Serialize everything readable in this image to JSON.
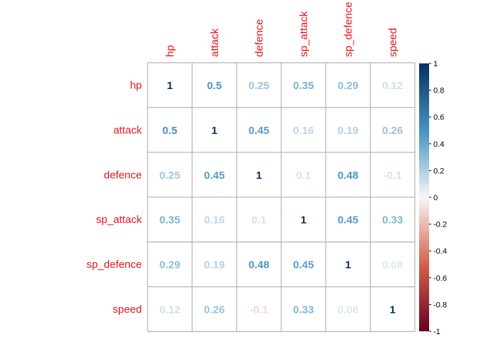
{
  "chart_data": {
    "type": "heatmap",
    "title": "",
    "variables": [
      "hp",
      "attack",
      "defence",
      "sp_attack",
      "sp_defence",
      "speed"
    ],
    "matrix": [
      [
        1,
        0.5,
        0.25,
        0.35,
        0.29,
        0.12
      ],
      [
        0.5,
        1,
        0.45,
        0.16,
        0.19,
        0.26
      ],
      [
        0.25,
        0.45,
        1,
        0.1,
        0.48,
        -0.1
      ],
      [
        0.35,
        0.16,
        0.1,
        1,
        0.45,
        0.33
      ],
      [
        0.29,
        0.19,
        0.48,
        0.45,
        1,
        0.08
      ],
      [
        0.12,
        0.26,
        -0.1,
        0.33,
        0.08,
        1
      ]
    ],
    "cell_labels": [
      [
        "1",
        "0.5",
        "0.25",
        "0.35",
        "0.29",
        "0.12"
      ],
      [
        "0.5",
        "1",
        "0.45",
        "0.16",
        "0.19",
        "0.26"
      ],
      [
        "0.25",
        "0.45",
        "1",
        "0.1",
        "0.48",
        "-0.1"
      ],
      [
        "0.35",
        "0.16",
        "0.1",
        "1",
        "0.45",
        "0.33"
      ],
      [
        "0.29",
        "0.19",
        "0.48",
        "0.45",
        "1",
        "0.08"
      ],
      [
        "0.12",
        "0.26",
        "-0.1",
        "0.33",
        "0.08",
        "1"
      ]
    ],
    "colorbar": {
      "range": [
        -1,
        1
      ],
      "ticks": [
        1,
        0.8,
        0.6,
        0.4,
        0.2,
        0,
        -0.2,
        -0.4,
        -0.6,
        -0.8,
        -1
      ],
      "tick_labels": [
        "1",
        "0.8",
        "0.6",
        "0.4",
        "0.2",
        "0",
        "-0.2",
        "-0.4",
        "-0.6",
        "-0.8",
        "-1"
      ],
      "colors": {
        "negative_end": "#67001f",
        "neg_mid": "#d6604d",
        "neutral": "#f7f7f7",
        "pos_mid": "#4393c3",
        "positive_end": "#053061"
      }
    },
    "label_color": "#e8141c",
    "grid_color": "#b3b3b3",
    "grid": true,
    "legend_position": "right"
  }
}
